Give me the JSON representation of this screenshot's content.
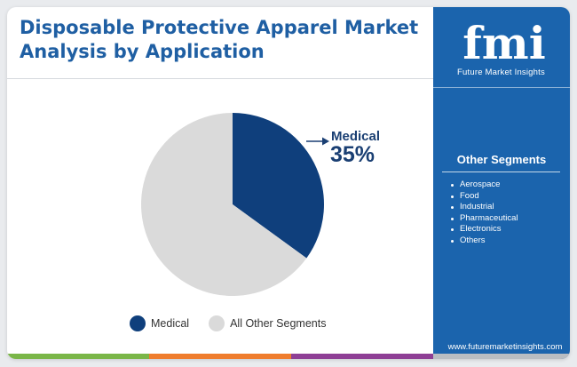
{
  "header": {
    "title_line1": "Disposable Protective Apparel Market",
    "title_line2": "Analysis by Application"
  },
  "brand": {
    "logo_letters": "fmi",
    "name": "Future Market Insights",
    "website": "www.futuremarketinsights.com"
  },
  "side_panel": {
    "heading": "Other Segments",
    "items": [
      "Aerospace",
      "Food",
      "Industrial",
      "Pharmaceutical",
      "Electronics",
      "Others"
    ]
  },
  "colors": {
    "medical": "#0f3f7c",
    "other": "#dadada",
    "side_panel": "#1b64ad",
    "title": "#1f5fa3",
    "bar_green": "#7ab648",
    "bar_orange": "#ef7d2d",
    "bar_purple": "#8e3f95",
    "bar_grey": "#b9bdc2"
  },
  "chart_data": {
    "type": "pie",
    "title": "Disposable Protective Apparel Market Analysis by Application",
    "slices": [
      {
        "label": "Medical",
        "value": 35,
        "color": "#0f3f7c"
      },
      {
        "label": "All Other Segments",
        "value": 65,
        "color": "#dadada"
      }
    ],
    "callout": {
      "label": "Medical",
      "value_text": "35%"
    },
    "legend": {
      "position": "bottom",
      "entries": [
        "Medical",
        "All Other Segments"
      ]
    }
  }
}
